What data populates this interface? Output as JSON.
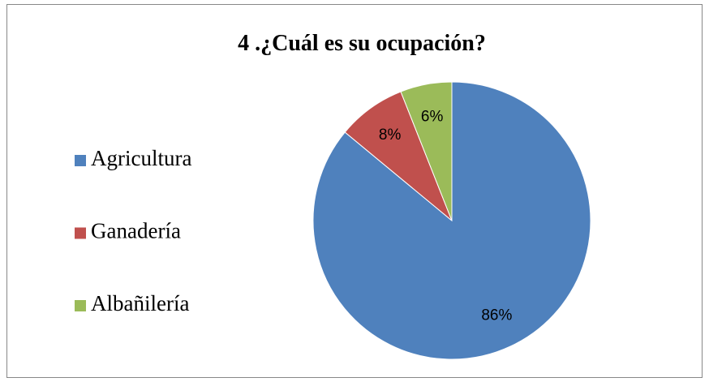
{
  "chart_data": {
    "type": "pie",
    "title": "4 .¿Cuál es su ocupación?",
    "categories": [
      "Agricultura",
      "Ganadería",
      "Albañilería"
    ],
    "values": [
      86,
      8,
      6
    ],
    "value_labels": [
      "86%",
      "8%",
      "6%"
    ],
    "colors": [
      "#4f81bd",
      "#c0504d",
      "#9bbb59"
    ],
    "legend": "left"
  }
}
